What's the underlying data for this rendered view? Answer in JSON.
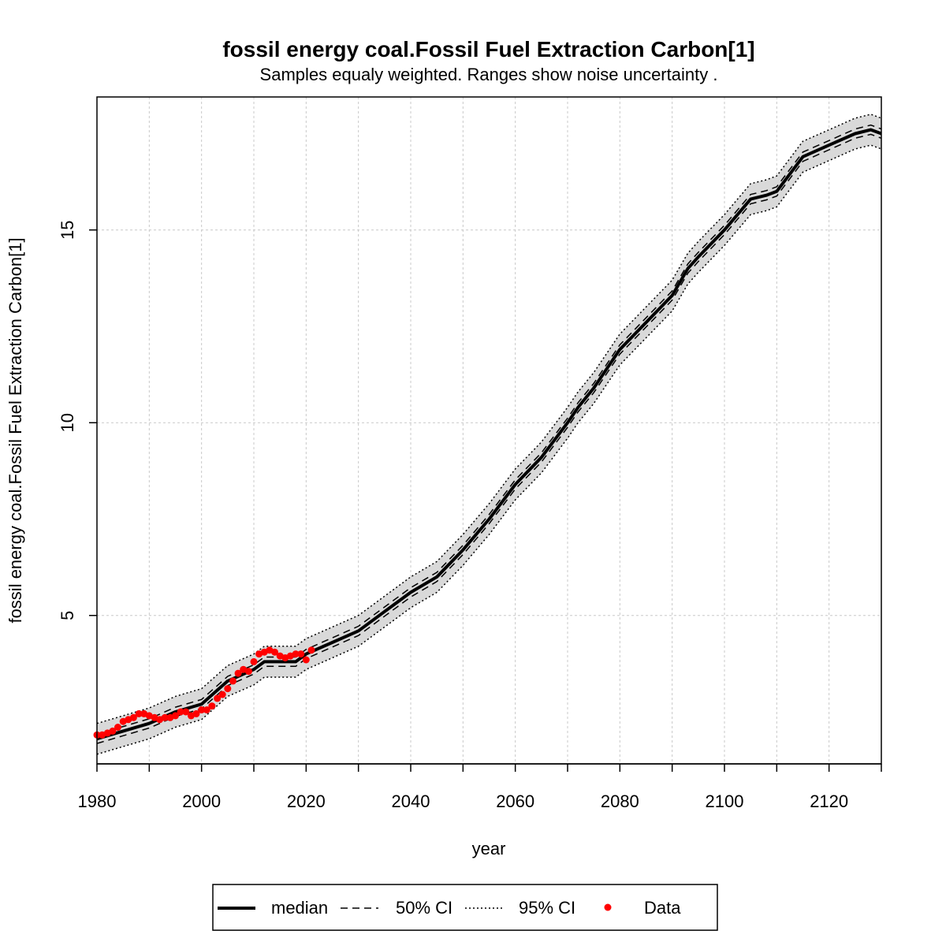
{
  "chart_data": {
    "type": "line",
    "title": "fossil energy coal.Fossil Fuel Extraction Carbon[1]",
    "subtitle": "Samples equaly weighted. Ranges show  noise uncertainty .",
    "xlabel": "year",
    "ylabel": "fossil energy coal.Fossil Fuel Extraction Carbon[1]",
    "xlim": [
      1980,
      2130
    ],
    "ylim": [
      1.15,
      18.45
    ],
    "x_ticks": [
      1980,
      2000,
      2020,
      2040,
      2060,
      2080,
      2100,
      2120
    ],
    "y_ticks": [
      5,
      10,
      15
    ],
    "x_tick_labels": [
      "1980",
      "2000",
      "2020",
      "2040",
      "2060",
      "2080",
      "2100",
      "2120"
    ],
    "y_tick_labels": [
      "5",
      "10",
      "15"
    ],
    "grid": true,
    "legend_position": "bottom",
    "legend": {
      "median": "median",
      "ci50": "50% CI",
      "ci95": "95% CI",
      "data": "Data"
    },
    "colors": {
      "median": "#000000",
      "band": "#d9d9d9",
      "data": "#ff0000",
      "grid": "#c8c8c8"
    },
    "median": {
      "x": [
        1980,
        1985,
        1990,
        1995,
        2000,
        2005,
        2010,
        2012,
        2015,
        2018,
        2020,
        2025,
        2030,
        2035,
        2040,
        2045,
        2050,
        2055,
        2060,
        2065,
        2070,
        2072,
        2075,
        2080,
        2085,
        2090,
        2093,
        2095,
        2100,
        2105,
        2108,
        2110,
        2115,
        2120,
        2125,
        2128,
        2130
      ],
      "y": [
        1.8,
        2.0,
        2.2,
        2.5,
        2.7,
        3.3,
        3.6,
        3.8,
        3.8,
        3.8,
        4.0,
        4.3,
        4.6,
        5.1,
        5.6,
        6.0,
        6.7,
        7.5,
        8.4,
        9.1,
        10.0,
        10.4,
        10.9,
        11.9,
        12.6,
        13.3,
        14.0,
        14.3,
        15.0,
        15.8,
        15.9,
        16.0,
        16.9,
        17.2,
        17.5,
        17.6,
        17.5
      ]
    },
    "ci50_upper": [
      1.92,
      2.12,
      2.32,
      2.62,
      2.82,
      3.42,
      3.72,
      3.92,
      3.92,
      3.92,
      4.12,
      4.42,
      4.72,
      5.22,
      5.72,
      6.12,
      6.82,
      7.62,
      8.52,
      9.22,
      10.12,
      10.52,
      11.02,
      12.02,
      12.72,
      13.42,
      14.12,
      14.42,
      15.12,
      15.92,
      16.02,
      16.12,
      17.02,
      17.32,
      17.62,
      17.72,
      17.62
    ],
    "ci50_lower": [
      1.68,
      1.88,
      2.08,
      2.38,
      2.58,
      3.18,
      3.48,
      3.68,
      3.68,
      3.68,
      3.88,
      4.18,
      4.48,
      4.98,
      5.48,
      5.88,
      6.58,
      7.38,
      8.28,
      8.98,
      9.88,
      10.28,
      10.78,
      11.78,
      12.48,
      13.18,
      13.88,
      14.18,
      14.88,
      15.68,
      15.78,
      15.88,
      16.78,
      17.08,
      17.38,
      17.48,
      17.38
    ],
    "ci95_upper": [
      2.2,
      2.4,
      2.6,
      2.9,
      3.1,
      3.7,
      4.0,
      4.2,
      4.2,
      4.2,
      4.4,
      4.7,
      5.0,
      5.5,
      6.0,
      6.4,
      7.1,
      7.9,
      8.8,
      9.5,
      10.4,
      10.8,
      11.3,
      12.3,
      13.0,
      13.7,
      14.4,
      14.7,
      15.4,
      16.2,
      16.3,
      16.4,
      17.3,
      17.6,
      17.9,
      18.0,
      17.9
    ],
    "ci95_lower": [
      1.4,
      1.6,
      1.8,
      2.1,
      2.3,
      2.9,
      3.2,
      3.4,
      3.4,
      3.4,
      3.6,
      3.9,
      4.2,
      4.7,
      5.2,
      5.6,
      6.3,
      7.1,
      8.0,
      8.7,
      9.6,
      10.0,
      10.5,
      11.5,
      12.2,
      12.9,
      13.6,
      13.9,
      14.6,
      15.4,
      15.5,
      15.6,
      16.5,
      16.8,
      17.1,
      17.2,
      17.1
    ],
    "data_points": {
      "x": [
        1980,
        1981,
        1982,
        1983,
        1984,
        1985,
        1986,
        1987,
        1988,
        1989,
        1990,
        1991,
        1992,
        1993,
        1994,
        1995,
        1996,
        1997,
        1998,
        1999,
        2000,
        2001,
        2002,
        2003,
        2004,
        2005,
        2006,
        2007,
        2008,
        2009,
        2010,
        2011,
        2012,
        2013,
        2014,
        2015,
        2016,
        2017,
        2018,
        2019,
        2020,
        2021
      ],
      "y": [
        1.9,
        1.9,
        1.95,
        2.0,
        2.1,
        2.25,
        2.3,
        2.35,
        2.45,
        2.45,
        2.4,
        2.35,
        2.3,
        2.35,
        2.35,
        2.4,
        2.5,
        2.5,
        2.4,
        2.45,
        2.55,
        2.55,
        2.65,
        2.85,
        2.95,
        3.1,
        3.3,
        3.5,
        3.6,
        3.55,
        3.8,
        4.0,
        4.05,
        4.1,
        4.05,
        3.95,
        3.9,
        3.95,
        4.0,
        4.0,
        3.85,
        4.1
      ]
    }
  }
}
